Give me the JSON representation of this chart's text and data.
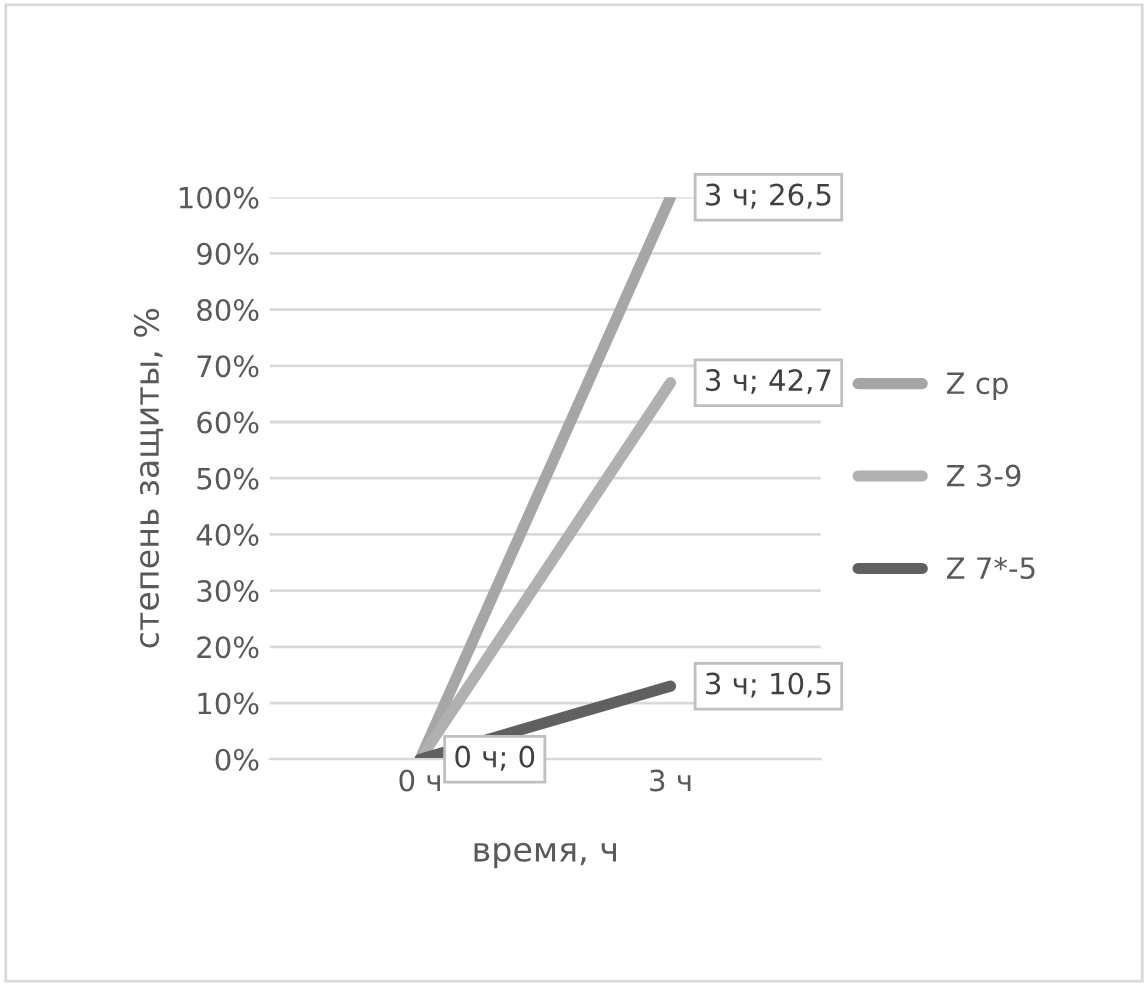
{
  "chart_data": {
    "type": "line",
    "xlabel": "время, ч",
    "ylabel": "степень защиты, %",
    "categories": [
      "0 ч",
      "3 ч"
    ],
    "series": [
      {
        "name": "Z ср",
        "color": "#a6a6a6",
        "values": [
          0,
          100
        ]
      },
      {
        "name": "Z 3-9",
        "color": "#b0b0b0",
        "values": [
          0,
          67
        ]
      },
      {
        "name": "Z 7*-5",
        "color": "#606060",
        "values": [
          0,
          13
        ]
      }
    ],
    "annotations": [
      {
        "text": "3 ч; 26,5",
        "x": "3 ч",
        "y": 100
      },
      {
        "text": "3 ч; 42,7",
        "x": "3 ч",
        "y": 67
      },
      {
        "text": "3 ч; 10,5",
        "x": "3 ч",
        "y": 13
      },
      {
        "text": "0 ч; 0",
        "x": "0 ч",
        "y": 0
      }
    ],
    "ylim": [
      0,
      100
    ],
    "yticks": [
      {
        "value": 0,
        "label": "0%"
      },
      {
        "value": 10,
        "label": "10%"
      },
      {
        "value": 20,
        "label": "20%"
      },
      {
        "value": 30,
        "label": "30%"
      },
      {
        "value": 40,
        "label": "40%"
      },
      {
        "value": 50,
        "label": "50%"
      },
      {
        "value": 60,
        "label": "60%"
      },
      {
        "value": 70,
        "label": "70%"
      },
      {
        "value": 80,
        "label": "80%"
      },
      {
        "value": 90,
        "label": "90%"
      },
      {
        "value": 100,
        "label": "100%"
      }
    ],
    "grid": "y",
    "legend": "right",
    "marker": "none",
    "line_style": "solid"
  }
}
